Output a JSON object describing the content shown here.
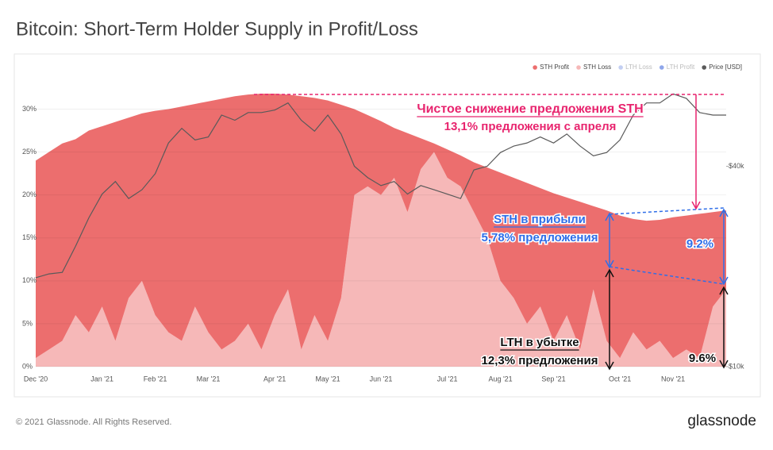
{
  "header": {
    "title": "Bitcoin: Short-Term Holder Supply in Profit/Loss"
  },
  "footer": {
    "copyright": "© 2021 Glassnode. All Rights Reserved.",
    "logo": "glassnode"
  },
  "chart_data": {
    "type": "area",
    "watermark": "glassnode",
    "categories": [
      "Dec '20",
      null,
      null,
      null,
      null,
      "Jan '21",
      null,
      null,
      null,
      "Feb '21",
      null,
      null,
      null,
      "Mar '21",
      null,
      null,
      null,
      null,
      "Apr '21",
      null,
      null,
      null,
      "May '21",
      null,
      null,
      null,
      "Jun '21",
      null,
      null,
      null,
      null,
      "Jul '21",
      null,
      null,
      null,
      "Aug '21",
      null,
      null,
      null,
      "Sep '21",
      null,
      null,
      null,
      null,
      "Oct '21",
      null,
      null,
      null,
      "Nov '21",
      null,
      null,
      null,
      null
    ],
    "stacked": true,
    "series": [
      {
        "name": "STH Profit",
        "color": "#ec6e6e",
        "values": [
          23,
          23,
          23,
          20.5,
          23.5,
          21,
          25.5,
          21,
          19.5,
          23.8,
          26,
          27.3,
          23.6,
          26.9,
          29.2,
          28.5,
          26.7,
          29.8,
          25.8,
          22.7,
          29.5,
          25.3,
          28,
          22.5,
          10,
          8.3,
          8.6,
          5.8,
          9.2,
          3.6,
          1,
          3.3,
          3.6,
          5.8,
          8.2,
          12.6,
          14,
          16.4,
          13.8,
          17.2,
          13.7,
          17.2,
          9.7,
          15.2,
          16.6,
          13.2,
          15,
          14.1,
          16.4,
          15.6,
          16.8,
          11,
          9.2
        ]
      },
      {
        "name": "STH Loss",
        "color": "#f6b8b8",
        "values": [
          1,
          2,
          3,
          6,
          4,
          7,
          3,
          8,
          10,
          6,
          4,
          3,
          7,
          4,
          2,
          3,
          5,
          2,
          6,
          9,
          2,
          6,
          3,
          8,
          20,
          21,
          20,
          22,
          18,
          23,
          25,
          22,
          21,
          18,
          15,
          10,
          8,
          5,
          7,
          3,
          6,
          2,
          9,
          3,
          1,
          4,
          2,
          3,
          1,
          2,
          1,
          7,
          9
        ]
      },
      {
        "name": "Price [USD]",
        "color": "#5a5a5a",
        "axis": "y2",
        "type": "line",
        "values": [
          18500,
          19000,
          19200,
          23000,
          28000,
          33000,
          36000,
          32000,
          34000,
          38000,
          47000,
          52000,
          48000,
          49000,
          57000,
          55000,
          58000,
          58000,
          59000,
          62000,
          55000,
          51000,
          57000,
          50000,
          40000,
          37000,
          35000,
          36000,
          33000,
          35000,
          34000,
          33000,
          32000,
          39000,
          40000,
          44000,
          46000,
          47000,
          49000,
          47000,
          50000,
          46000,
          43000,
          44000,
          48000,
          57000,
          62000,
          62000,
          66000,
          64000,
          58000,
          57000,
          57000
        ]
      }
    ],
    "legend_extra": [
      {
        "name": "LTH Loss",
        "color": "#c3cff2"
      },
      {
        "name": "LTH Profit",
        "color": "#8fa6ea"
      }
    ],
    "ylim": [
      0,
      33
    ],
    "yticks": [
      {
        "value": 0,
        "label": "0%"
      },
      {
        "value": 5,
        "label": "5%"
      },
      {
        "value": 10,
        "label": "10%"
      },
      {
        "value": 15,
        "label": "15%"
      },
      {
        "value": 20,
        "label": "20%"
      },
      {
        "value": 25,
        "label": "25%"
      },
      {
        "value": 30,
        "label": "30%"
      }
    ],
    "y2lim": [
      10000,
      71000
    ],
    "y2log": true,
    "y2ticks": [
      {
        "value": 10000,
        "label": "$10k"
      },
      {
        "value": 40000,
        "label": "$40k"
      }
    ],
    "annotations": [
      {
        "text": "Чистое снижение предложения STH",
        "color": "#e8246e",
        "underline": true
      },
      {
        "text": "13,1% предложения с апреля",
        "color": "#e8246e"
      },
      {
        "text": "STH в прибыли",
        "color": "#2f6ee8",
        "underline": true
      },
      {
        "text": "5,78% предложения",
        "color": "#2f6ee8"
      },
      {
        "text": "9.2%",
        "color": "#2f6ee8"
      },
      {
        "text": "LTH в убытке",
        "color": "#111111",
        "underline": true
      },
      {
        "text": "12,3% предложения",
        "color": "#111111"
      },
      {
        "text": "9.6%",
        "color": "#111111"
      }
    ]
  }
}
